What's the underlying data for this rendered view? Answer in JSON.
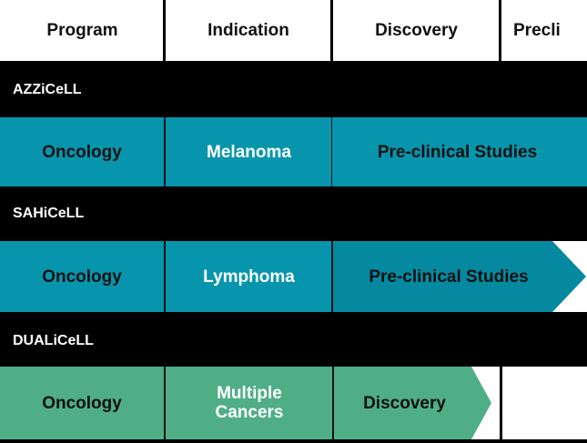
{
  "header": {
    "columns": [
      "Program",
      "Indication",
      "Discovery",
      "Precli"
    ]
  },
  "programs": [
    {
      "name": "AZZiCeLL",
      "program": "Oncology",
      "indication": "Melanoma",
      "stage": "Pre-clinical Studies"
    },
    {
      "name": "SAHiCeLL",
      "program": "Oncology",
      "indication": "Lymphoma",
      "stage": "Pre-clinical Studies"
    },
    {
      "name": "DUALiCeLL",
      "program": "Oncology",
      "indication": "Multiple Cancers",
      "stage": "Discovery"
    }
  ]
}
